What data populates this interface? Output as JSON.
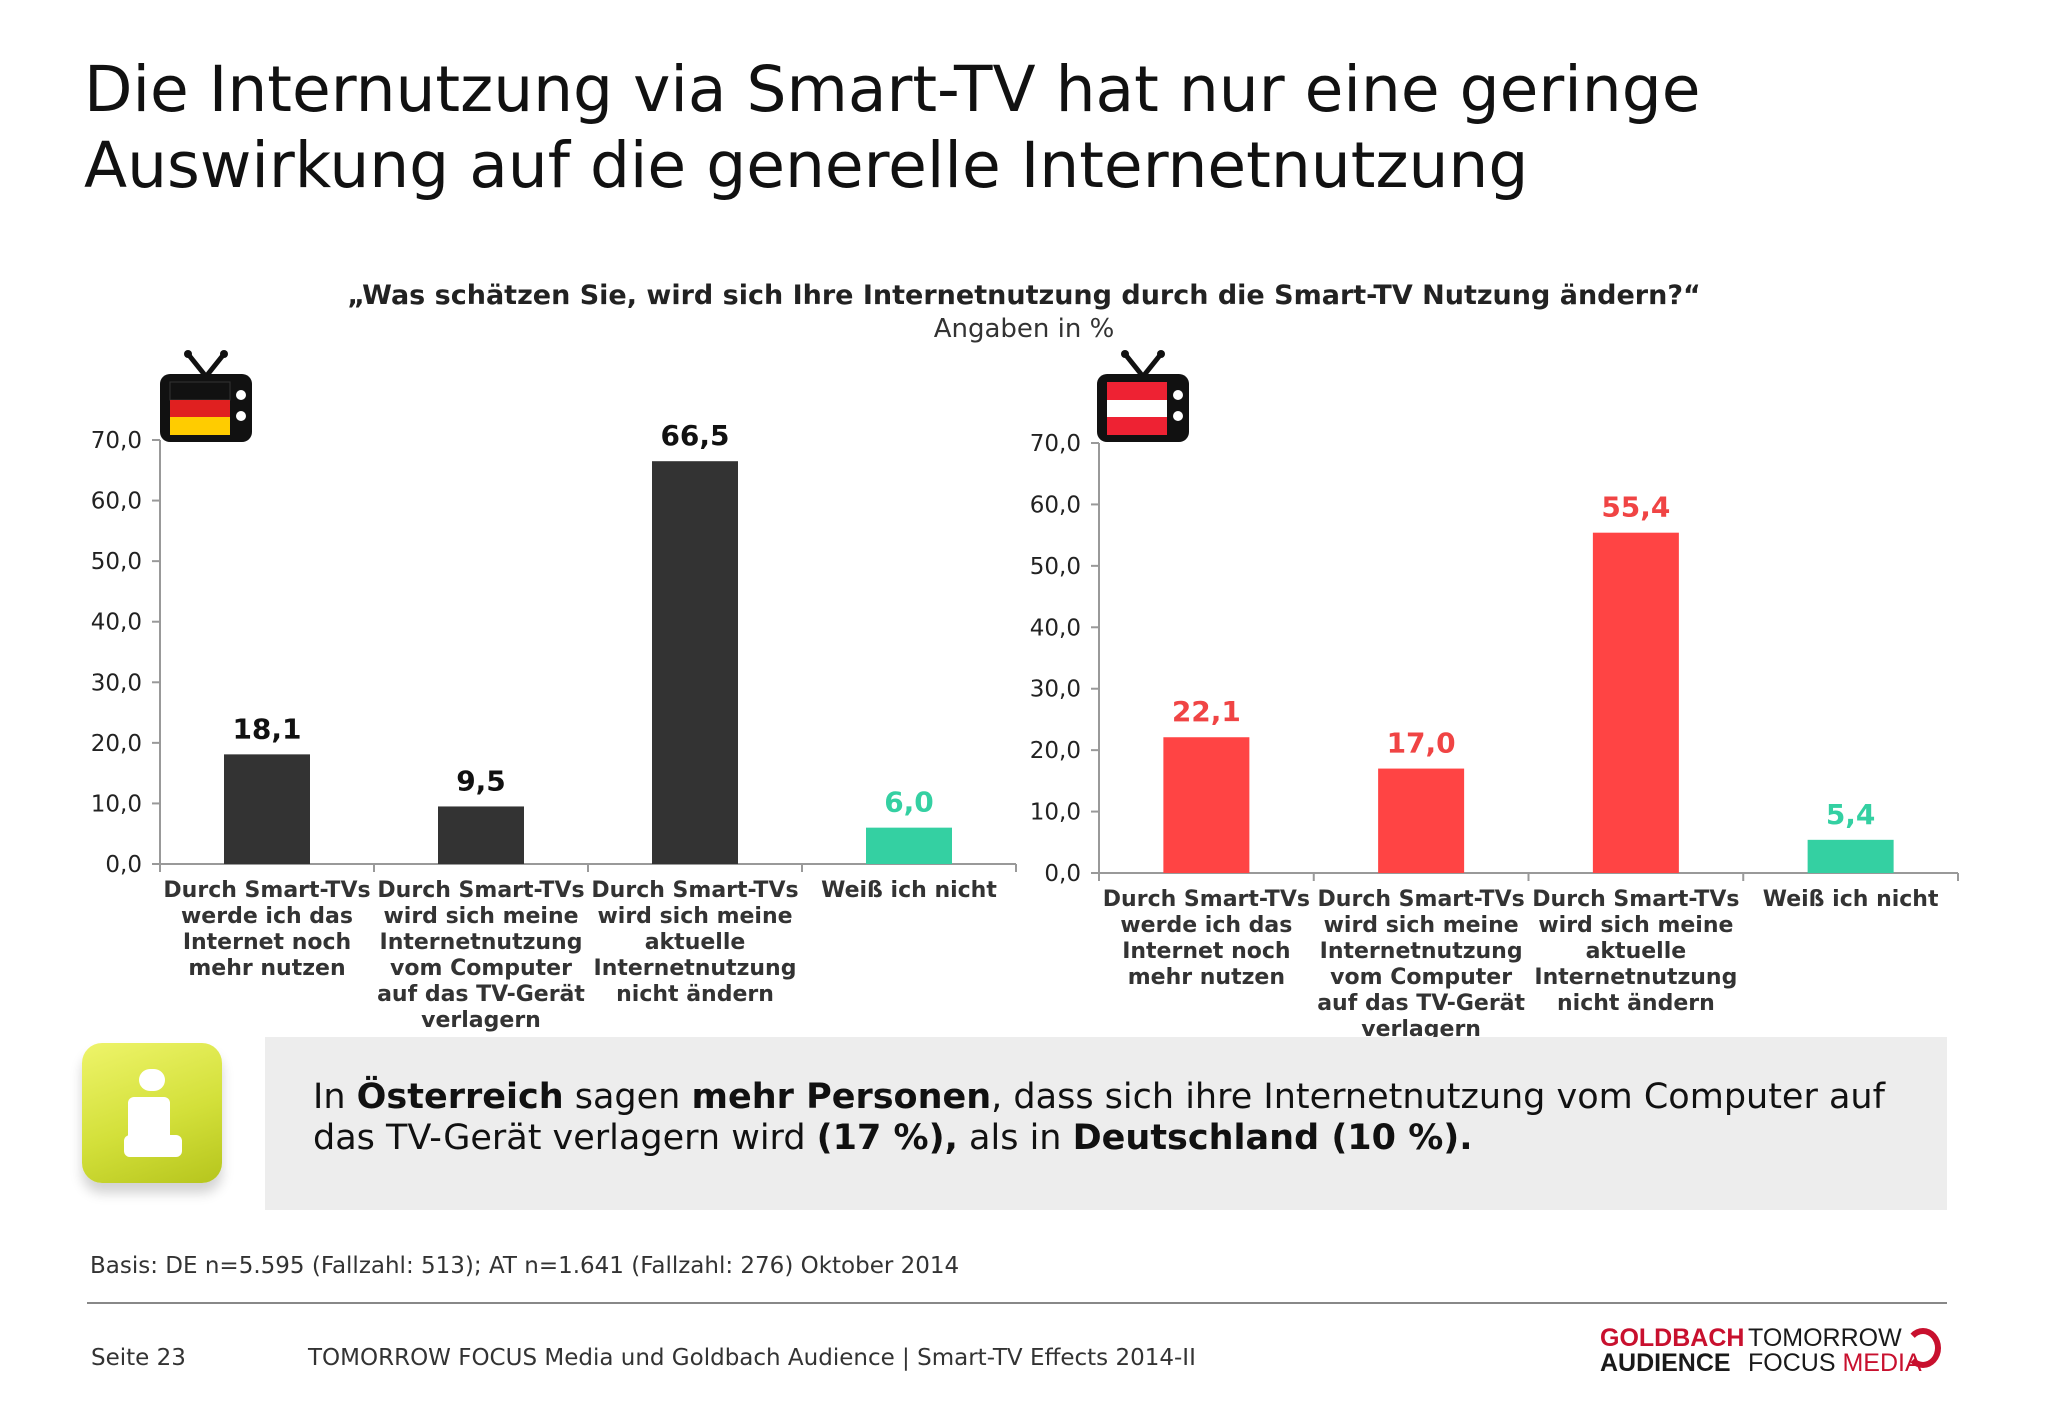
{
  "title": "Die Internutzung via Smart-TV hat nur eine geringe Auswirkung auf die generelle Internetnutzung",
  "question": "„Was schätzen Sie, wird sich Ihre Internetnutzung durch die Smart-TV Nutzung ändern?“",
  "unit_label": "Angaben in %",
  "chart_data": [
    {
      "type": "bar",
      "country_icon": "germany-flag-tv-icon",
      "categories": [
        "Durch Smart-TVs werde ich das Internet noch mehr nutzen",
        "Durch Smart-TVs wird sich meine Internetnutzung vom Computer auf das TV-Gerät verlagern",
        "Durch Smart-TVs wird sich meine aktuelle Internetnutzung nicht ändern",
        "Weiß ich nicht"
      ],
      "values": [
        18.1,
        9.5,
        66.5,
        6.0
      ],
      "value_labels": [
        "18,1",
        "9,5",
        "66,5",
        "6,0"
      ],
      "bar_colors": [
        "#333333",
        "#333333",
        "#333333",
        "#34d0a2"
      ],
      "label_colors": [
        "#111111",
        "#111111",
        "#111111",
        "#34d0a2"
      ],
      "yticks": [
        "0,0",
        "10,0",
        "20,0",
        "30,0",
        "40,0",
        "50,0",
        "60,0",
        "70,0"
      ],
      "ylim": [
        0,
        70
      ],
      "grid": false
    },
    {
      "type": "bar",
      "country_icon": "austria-flag-tv-icon",
      "categories": [
        "Durch Smart-TVs werde ich das Internet noch mehr nutzen",
        "Durch Smart-TVs wird sich meine Internetnutzung vom Computer auf das TV-Gerät verlagern",
        "Durch Smart-TVs wird sich meine aktuelle Internetnutzung nicht ändern",
        "Weiß ich nicht"
      ],
      "values": [
        22.1,
        17.0,
        55.4,
        5.4
      ],
      "value_labels": [
        "22,1",
        "17,0",
        "55,4",
        "5,4"
      ],
      "bar_colors": [
        "#ff4444",
        "#ff4444",
        "#ff4444",
        "#34d0a2"
      ],
      "label_colors": [
        "#f04444",
        "#f04444",
        "#f04444",
        "#34d0a2"
      ],
      "yticks": [
        "0,0",
        "10,0",
        "20,0",
        "30,0",
        "40,0",
        "50,0",
        "60,0",
        "70,0"
      ],
      "ylim": [
        0,
        70
      ],
      "grid": false
    }
  ],
  "info": {
    "icon": "info-icon",
    "t1": "In ",
    "b1": "Österreich",
    "t2": " sagen ",
    "b2": "mehr Personen",
    "t3": ", dass sich ihre Internetnutzung vom Computer auf das TV-Gerät verlagern wird ",
    "b3": "(17 %),",
    "t4": " als in ",
    "b4": "Deutschland (10 %)."
  },
  "basis": "Basis: DE n=5.595 (Fallzahl: 513); AT n=1.641 (Fallzahl: 276) Oktober 2014",
  "footer": {
    "page": "Seite 23",
    "text": "TOMORROW FOCUS Media und Goldbach Audience | Smart-TV Effects 2014-II",
    "logo_goldbach_1": "GOLDBACH",
    "logo_goldbach_2": "AUDIENCE",
    "logo_tfm_1": "TOMORROW",
    "logo_tfm_2a": "FOCUS ",
    "logo_tfm_2b": "MEDIA"
  }
}
